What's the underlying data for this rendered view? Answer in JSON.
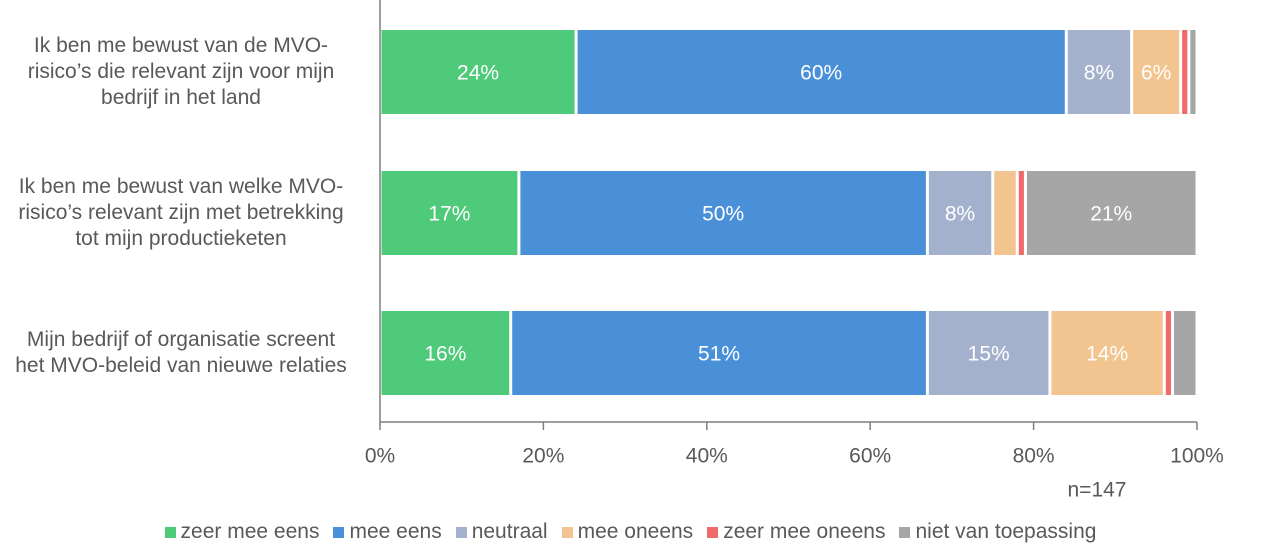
{
  "chart_data": {
    "type": "stacked-barh",
    "categories": [
      "Ik ben me bewust van de MVO-risico’s die relevant zijn voor mijn bedrijf in het land",
      "Ik ben me bewust van welke MVO-risico’s relevant zijn met betrekking tot mijn productieketen",
      "Mijn bedrijf of organisatie screent het MVO-beleid van nieuwe relaties"
    ],
    "series": [
      {
        "name": "zeer mee eens",
        "color": "#4fc97a",
        "values": [
          24,
          17,
          16
        ],
        "value_labels": [
          "24%",
          "17%",
          "16%"
        ]
      },
      {
        "name": "mee eens",
        "color": "#4a90d9",
        "values": [
          60,
          50,
          51
        ],
        "value_labels": [
          "60%",
          "50%",
          "51%"
        ]
      },
      {
        "name": "neutraal",
        "color": "#a3b1cc",
        "values": [
          8,
          8,
          15
        ],
        "value_labels": [
          "8%",
          "8%",
          "15%"
        ]
      },
      {
        "name": "mee oneens",
        "color": "#f2c48f",
        "values": [
          6,
          3,
          14
        ],
        "value_labels": [
          "6%",
          null,
          "14%"
        ]
      },
      {
        "name": "zeer mee oneens",
        "color": "#ef6b6b",
        "values": [
          1,
          1,
          1
        ],
        "value_labels": [
          null,
          null,
          null
        ]
      },
      {
        "name": "niet van toepassing",
        "color": "#a6a6a6",
        "values": [
          1,
          21,
          3
        ],
        "value_labels": [
          null,
          "21%",
          null
        ]
      }
    ],
    "xlim": [
      0,
      100
    ],
    "xticks": [
      {
        "value": 0,
        "label": "0%"
      },
      {
        "value": 20,
        "label": "20%"
      },
      {
        "value": 40,
        "label": "40%"
      },
      {
        "value": 60,
        "label": "60%"
      },
      {
        "value": 80,
        "label": "80%"
      },
      {
        "value": 100,
        "label": "100%"
      }
    ],
    "annotation": "n=147",
    "legend": "bottom"
  }
}
